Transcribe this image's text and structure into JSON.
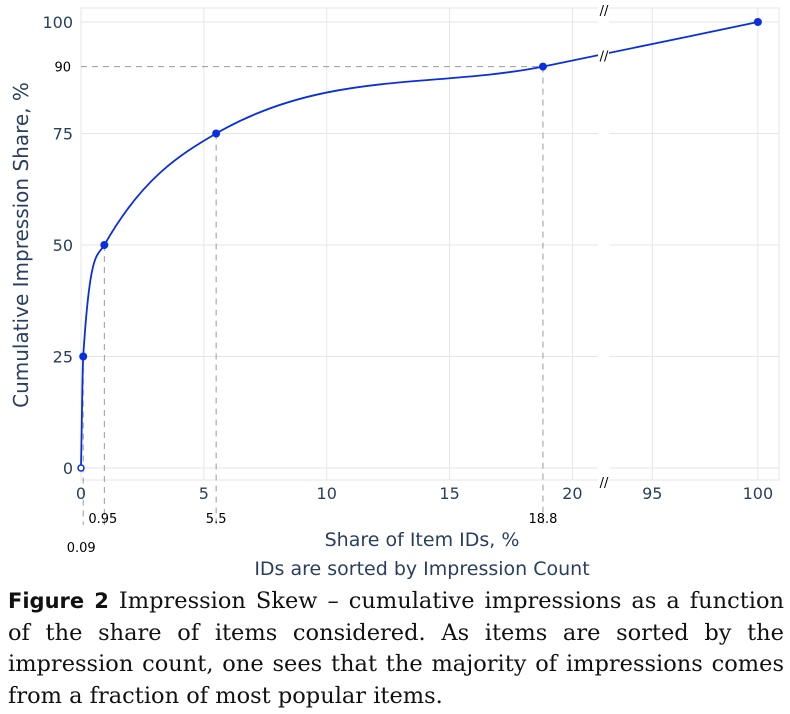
{
  "chart_data": {
    "type": "line",
    "ylabel": "Cumulative Impression Share, %",
    "xlabel": "Share of Item IDs, %",
    "xlabel_sub": "IDs are sorted by Impression Count",
    "x_segments": [
      [
        0,
        21
      ],
      [
        93,
        101
      ]
    ],
    "ylim": [
      0,
      100
    ],
    "x_ticks": [
      "0",
      "5",
      "10",
      "15",
      "20",
      "95",
      "100"
    ],
    "y_ticks": [
      "0",
      "25",
      "50",
      "75",
      "100"
    ],
    "grid": true,
    "series": [
      {
        "x": [
          0.09,
          0.95,
          5.5,
          18.8,
          100
        ],
        "y": [
          25,
          50,
          75,
          90,
          100
        ]
      }
    ],
    "points": [
      {
        "x": 0,
        "y": 0,
        "hollow": true
      },
      {
        "x": 0.09,
        "y": 25
      },
      {
        "x": 0.95,
        "y": 50
      },
      {
        "x": 5.5,
        "y": 75
      },
      {
        "x": 18.8,
        "y": 90
      },
      {
        "x": 100,
        "y": 100
      }
    ],
    "annotations": [
      "0.09",
      "0.95",
      "5.5",
      "18.8"
    ],
    "y_annotation": "90",
    "break_marks": "//",
    "line_color": "#0a2fe0"
  },
  "caption": {
    "label": "Figure 2",
    "text": "Impression Skew – cumulative impressions as a function of the share of items considered. As items are sorted by the impression count, one sees that the majority of impressions comes from a fraction of most popular items."
  }
}
